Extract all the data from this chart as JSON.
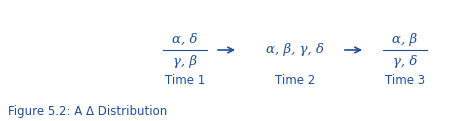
{
  "text_color": "#1F4E99",
  "background_color": "#ffffff",
  "fig_caption": "Figure 5.2: A Δ Distribution",
  "caption_fontsize": 8.5,
  "time_labels": [
    "Time 1",
    "Time 2",
    "Time 3"
  ],
  "time_label_fontsize": 8.5,
  "frac1_num": "α, δ",
  "frac1_den": "γ, β",
  "mid_text": "α, β, γ, δ",
  "frac3_num": "α, β",
  "frac3_den": "γ, δ",
  "greek_fontsize": 9.5
}
